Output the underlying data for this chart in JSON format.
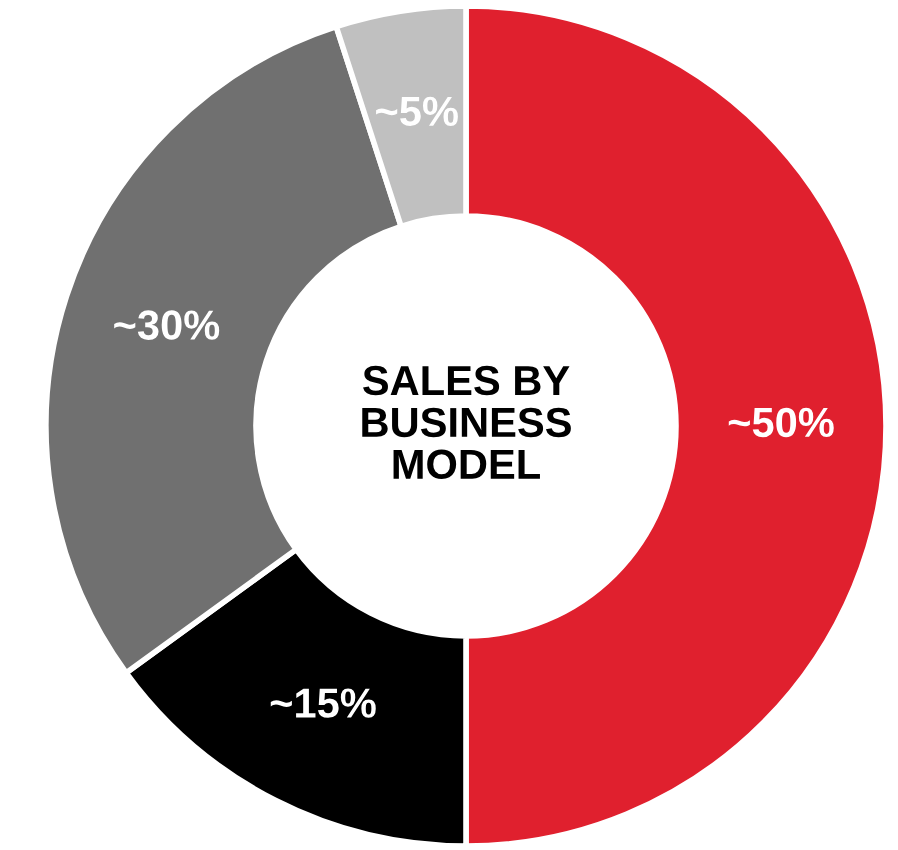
{
  "chart_data": {
    "type": "donut",
    "title": "SALES BY\nBUSINESS\nMODEL",
    "categories": [
      null,
      null,
      null,
      null
    ],
    "values": [
      50,
      15,
      30,
      5
    ],
    "colors": [
      "#e0202e",
      "#000000",
      "#707070",
      "#c0c0c0"
    ],
    "value_labels": [
      "~50%",
      "~15%",
      "~30%",
      "~5%"
    ]
  }
}
